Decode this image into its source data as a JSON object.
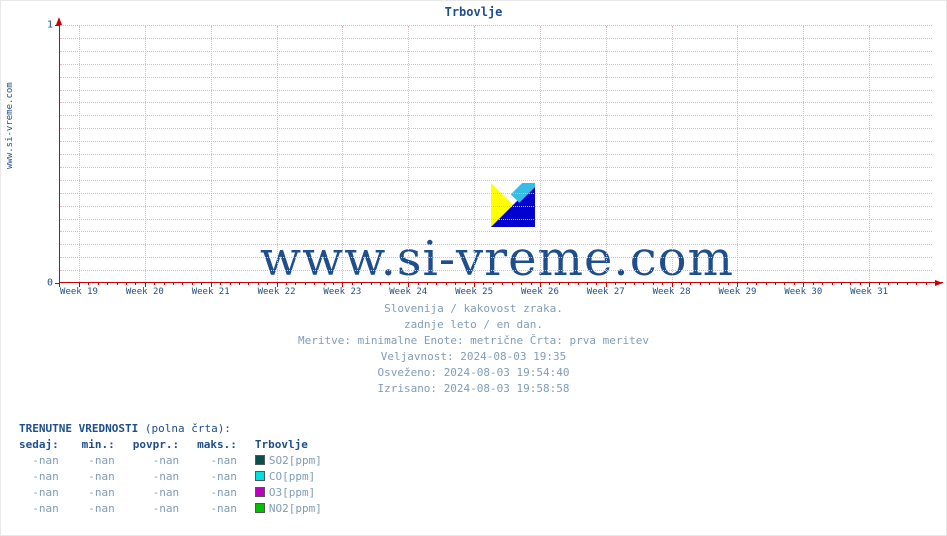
{
  "chart": {
    "title": "Trbovlje",
    "site_label": "www.si-vreme.com",
    "watermark_text": "www.si-vreme.com",
    "colors": {
      "axis": "#cc0000",
      "grid": "#f5b0b0",
      "text_primary": "#1f4e8c",
      "text_muted": "#7f9db9",
      "background": "#ffffff",
      "logo_yellow": "#ffff00",
      "logo_blue": "#0000d0",
      "logo_cyan": "#33bde8"
    },
    "font": {
      "family_mono": "DejaVu Sans Mono",
      "family_serif": "DejaVu Serif",
      "title_size": 12,
      "tick_size": 9,
      "info_size": 11,
      "watermark_size": 48
    },
    "y": {
      "lim": [
        0,
        1
      ],
      "ticks": [
        0,
        1
      ],
      "minor_step": 0.05
    },
    "x": {
      "ticks": [
        "Week 19",
        "Week 20",
        "Week 21",
        "Week 22",
        "Week 23",
        "Week 24",
        "Week 25",
        "Week 26",
        "Week 27",
        "Week 28",
        "Week 29",
        "Week 30",
        "Week 31"
      ],
      "minor_per_major": 7
    },
    "series": [
      {
        "name": "SO2[ppm]",
        "color": "#0b4f4a",
        "values": []
      },
      {
        "name": "CO[ppm]",
        "color": "#00e0e0",
        "values": []
      },
      {
        "name": "O3[ppm]",
        "color": "#c000c0",
        "values": []
      },
      {
        "name": "NO2[ppm]",
        "color": "#00c000",
        "values": []
      }
    ]
  },
  "info": {
    "line1": "Slovenija / kakovost zraka.",
    "line2": "zadnje leto / en dan.",
    "line3": "Meritve: minimalne  Enote: metrične  Črta: prva meritev",
    "line4_label": "Veljavnost:",
    "line4_value": "2024-08-03 19:35",
    "line5_label": "Osveženo:",
    "line5_value": "2024-08-03 19:54:40",
    "line6_label": "Izrisano:",
    "line6_value": "2024-08-03 19:58:58"
  },
  "table": {
    "title_strong": "TRENUTNE VREDNOSTI",
    "title_paren": " (polna črta):",
    "headers": {
      "now": "sedaj:",
      "min": "min.:",
      "avg": "povpr.:",
      "max": "maks.:",
      "station": "Trbovlje"
    },
    "rows": [
      {
        "now": "-nan",
        "min": "-nan",
        "avg": "-nan",
        "max": "-nan",
        "series_idx": 0
      },
      {
        "now": "-nan",
        "min": "-nan",
        "avg": "-nan",
        "max": "-nan",
        "series_idx": 1
      },
      {
        "now": "-nan",
        "min": "-nan",
        "avg": "-nan",
        "max": "-nan",
        "series_idx": 2
      },
      {
        "now": "-nan",
        "min": "-nan",
        "avg": "-nan",
        "max": "-nan",
        "series_idx": 3
      }
    ]
  }
}
